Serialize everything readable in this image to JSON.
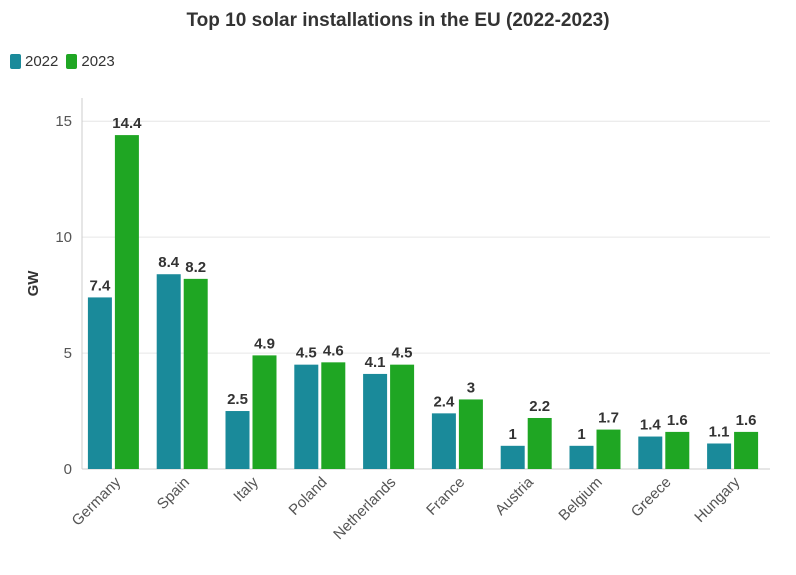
{
  "chart_data": {
    "type": "bar",
    "title": "Top 10 solar installations in the EU (2022-2023)",
    "xlabel": "",
    "ylabel": "GW",
    "ylim": [
      0,
      16
    ],
    "yticks": [
      0,
      5,
      10,
      15
    ],
    "grid": true,
    "legend_position": "top-left",
    "categories": [
      "Germany",
      "Spain",
      "Italy",
      "Poland",
      "Netherlands",
      "France",
      "Austria",
      "Belgium",
      "Greece",
      "Hungary"
    ],
    "series": [
      {
        "name": "2022",
        "color": "#1a8a9a",
        "values": [
          7.4,
          8.4,
          2.5,
          4.5,
          4.1,
          2.4,
          1,
          1,
          1.4,
          1.1
        ],
        "labels": [
          "7.4",
          "8.4",
          "2.5",
          "4.5",
          "4.1",
          "2.4",
          "1",
          "1",
          "1.4",
          "1.1"
        ]
      },
      {
        "name": "2023",
        "color": "#1fa623",
        "values": [
          14.4,
          8.2,
          4.9,
          4.6,
          4.5,
          3,
          2.2,
          1.7,
          1.6,
          1.6
        ],
        "labels": [
          "14.4",
          "8.2",
          "4.9",
          "4.6",
          "4.5",
          "3",
          "2.2",
          "1.7",
          "1.6",
          "1.6"
        ]
      }
    ]
  }
}
